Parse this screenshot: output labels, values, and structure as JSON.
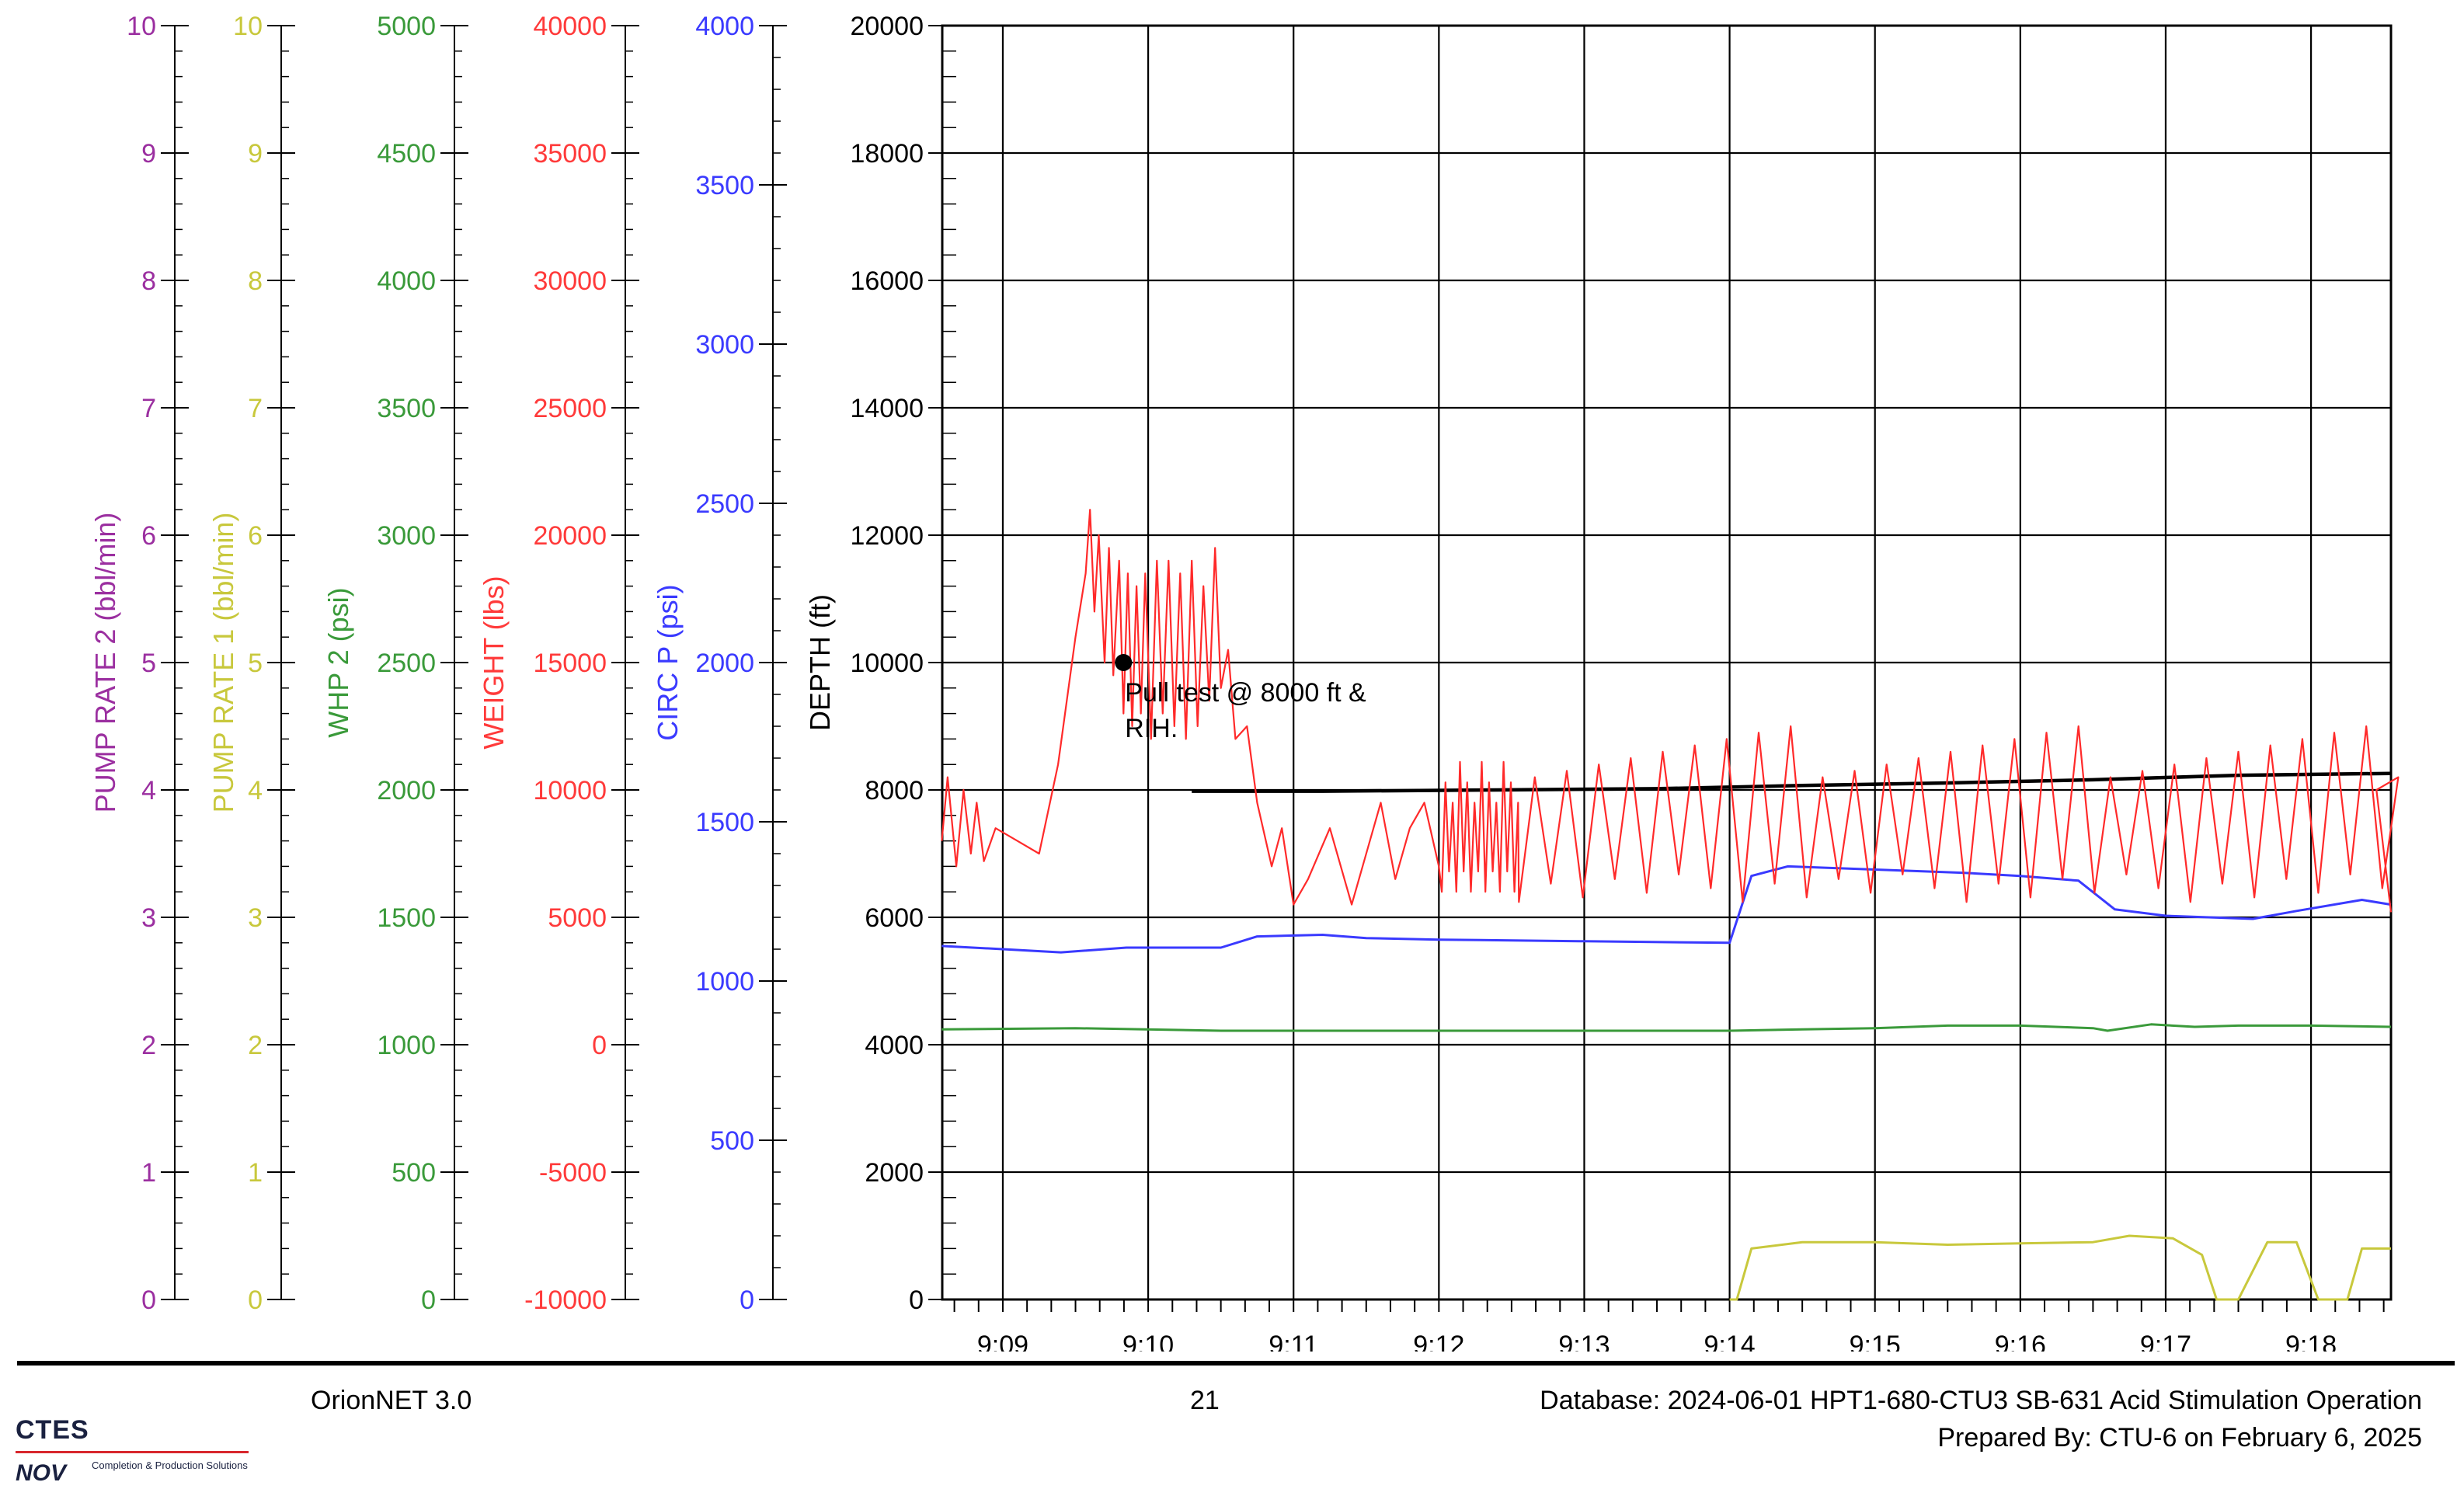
{
  "chart_data": {
    "type": "line",
    "x_axis": {
      "tick_labels": [
        "9:09",
        "9:10",
        "9:11",
        "9:12",
        "9:13",
        "9:14",
        "9:15",
        "9:16",
        "9:17",
        "9:18"
      ],
      "range": [
        "9:08:35",
        "9:18:33"
      ]
    },
    "y_axes": [
      {
        "id": "pump2",
        "label": "PUMP RATE 2  (bbl/min)",
        "color": "#9b2fa0",
        "range": [
          0,
          10
        ],
        "ticks": [
          "0",
          "1",
          "2",
          "3",
          "4",
          "5",
          "6",
          "7",
          "8",
          "9",
          "10"
        ]
      },
      {
        "id": "pump1",
        "label": "PUMP RATE 1  (bbl/min)",
        "color": "#c8c83c",
        "range": [
          0,
          10
        ],
        "ticks": [
          "0",
          "1",
          "2",
          "3",
          "4",
          "5",
          "6",
          "7",
          "8",
          "9",
          "10"
        ]
      },
      {
        "id": "whp2",
        "label": "WHP 2  (psi)",
        "color": "#3a9a3a",
        "range": [
          0,
          5000
        ],
        "ticks": [
          "0",
          "500",
          "1000",
          "1500",
          "2000",
          "2500",
          "3000",
          "3500",
          "4000",
          "4500",
          "5000"
        ]
      },
      {
        "id": "weight",
        "label": "WEIGHT  (lbs)",
        "color": "#ff3a3a",
        "range": [
          -10000,
          40000
        ],
        "ticks": [
          "-10000",
          "-5000",
          "0",
          "5000",
          "10000",
          "15000",
          "20000",
          "25000",
          "30000",
          "35000",
          "40000"
        ]
      },
      {
        "id": "circp",
        "label": "CIRC P  (psi)",
        "color": "#3a3aff",
        "range": [
          0,
          4000
        ],
        "ticks": [
          "0",
          "500",
          "1000",
          "1500",
          "2000",
          "2500",
          "3000",
          "3500",
          "4000"
        ]
      },
      {
        "id": "depth",
        "label": "DEPTH  (ft)",
        "color": "#000000",
        "range": [
          0,
          20000
        ],
        "ticks": [
          "0",
          "2000",
          "4000",
          "6000",
          "8000",
          "10000",
          "12000",
          "14000",
          "16000",
          "18000",
          "20000"
        ]
      }
    ],
    "grid": true,
    "series": [
      {
        "axis": "depth",
        "color": "#000000",
        "points": [
          [
            10.3,
            7980
          ],
          [
            11.2,
            7980
          ],
          [
            12.4,
            8000
          ],
          [
            13.5,
            8020
          ],
          [
            14.5,
            8070
          ],
          [
            15.5,
            8110
          ],
          [
            16.5,
            8160
          ],
          [
            17.5,
            8230
          ],
          [
            18.55,
            8260
          ]
        ]
      },
      {
        "axis": "circp",
        "color": "#3a3aff",
        "points": [
          [
            8.58,
            1110
          ],
          [
            9.0,
            1100
          ],
          [
            9.4,
            1090
          ],
          [
            9.85,
            1105
          ],
          [
            10.5,
            1105
          ],
          [
            10.75,
            1140
          ],
          [
            11.2,
            1145
          ],
          [
            11.5,
            1135
          ],
          [
            12.0,
            1130
          ],
          [
            13.0,
            1125
          ],
          [
            14.0,
            1120
          ],
          [
            14.15,
            1330
          ],
          [
            14.4,
            1360
          ],
          [
            15.0,
            1350
          ],
          [
            15.6,
            1340
          ],
          [
            16.0,
            1330
          ],
          [
            16.4,
            1315
          ],
          [
            16.65,
            1225
          ],
          [
            17.0,
            1205
          ],
          [
            17.6,
            1195
          ],
          [
            17.9,
            1220
          ],
          [
            18.35,
            1255
          ],
          [
            18.55,
            1240
          ]
        ]
      },
      {
        "axis": "whp2",
        "color": "#3a9a3a",
        "points": [
          [
            8.58,
            1060
          ],
          [
            9.5,
            1065
          ],
          [
            10.5,
            1055
          ],
          [
            12.0,
            1055
          ],
          [
            13.5,
            1055
          ],
          [
            14.0,
            1055
          ],
          [
            14.5,
            1060
          ],
          [
            15.0,
            1065
          ],
          [
            15.5,
            1075
          ],
          [
            16.0,
            1075
          ],
          [
            16.5,
            1065
          ],
          [
            16.6,
            1055
          ],
          [
            16.9,
            1080
          ],
          [
            17.2,
            1070
          ],
          [
            17.5,
            1075
          ],
          [
            18.0,
            1075
          ],
          [
            18.55,
            1070
          ]
        ]
      },
      {
        "axis": "pump1",
        "color": "#c8c83c",
        "points": [
          [
            14.0,
            0
          ],
          [
            14.05,
            0
          ],
          [
            14.15,
            0.4
          ],
          [
            14.5,
            0.45
          ],
          [
            15.0,
            0.45
          ],
          [
            15.5,
            0.43
          ],
          [
            16.0,
            0.44
          ],
          [
            16.5,
            0.45
          ],
          [
            16.75,
            0.5
          ],
          [
            17.05,
            0.48
          ],
          [
            17.25,
            0.35
          ],
          [
            17.35,
            0
          ],
          [
            17.5,
            0
          ],
          [
            17.7,
            0.45
          ],
          [
            17.9,
            0.45
          ],
          [
            18.05,
            0
          ],
          [
            18.25,
            0
          ],
          [
            18.35,
            0.4
          ],
          [
            18.55,
            0.4
          ]
        ]
      },
      {
        "axis": "weight",
        "color": "#ff2a2a",
        "points": []
      }
    ],
    "annotations": [
      {
        "x": 9.83,
        "y": 10000,
        "axis": "depth",
        "label": "Pull test @ 8000 ft &\nRIH."
      }
    ]
  },
  "footer": {
    "software": "OrionNET 3.0",
    "page_number": "21",
    "database": "Database: 2024-06-01 HPT1-680-CTU3 SB-631 Acid Stimulation Operation",
    "prepared_by": "Prepared By: CTU-6 on February 6, 2025",
    "logo_text": "CTES",
    "logo_mark": "NOV",
    "logo_subtext": "Completion & Production Solutions"
  }
}
